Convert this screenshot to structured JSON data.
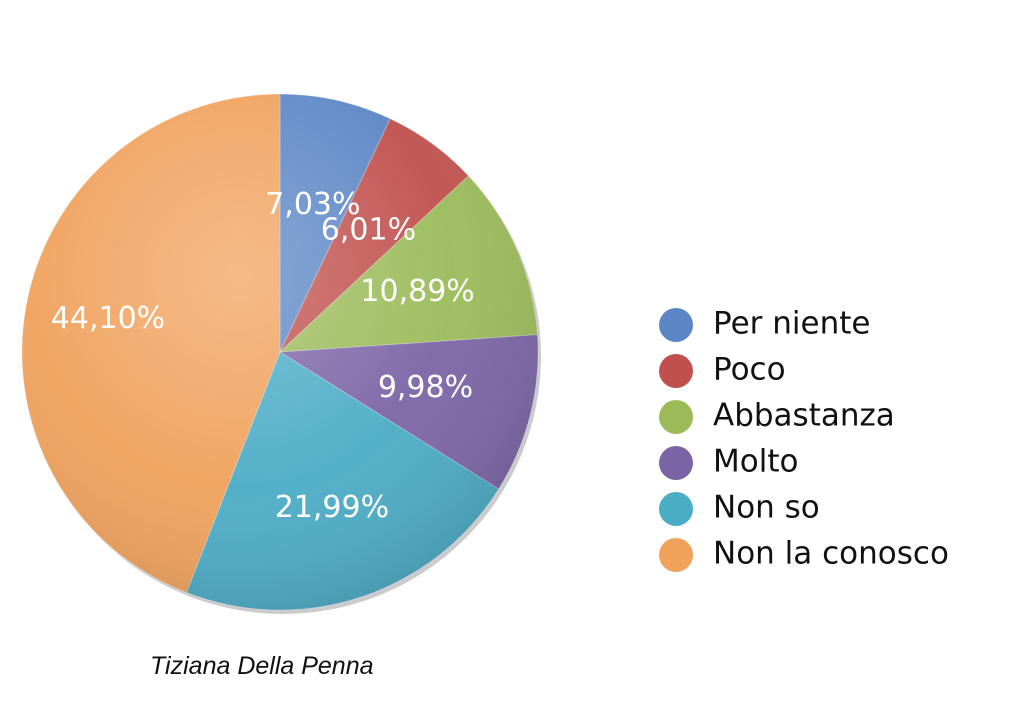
{
  "chart_data": {
    "type": "pie",
    "categories": [
      "Per niente",
      "Poco",
      "Abbastanza",
      "Molto",
      "Non so",
      "Non la conosco"
    ],
    "values": [
      7.03,
      6.01,
      10.89,
      9.98,
      21.99,
      44.1
    ],
    "value_labels": [
      "7,03%",
      "6,01%",
      "10,89%",
      "9,98%",
      "21,99%",
      "44,10%"
    ],
    "colors": [
      "#5B86C5",
      "#C0504D",
      "#9BBB59",
      "#7B64A6",
      "#4BACC6",
      "#F0A15B"
    ],
    "legend": {
      "position": "right",
      "entries": [
        "Per niente",
        "Poco",
        "Abbastanza",
        "Molto",
        "Non so",
        "Non la conosco"
      ]
    }
  },
  "credit": "Tiziana Della Penna"
}
